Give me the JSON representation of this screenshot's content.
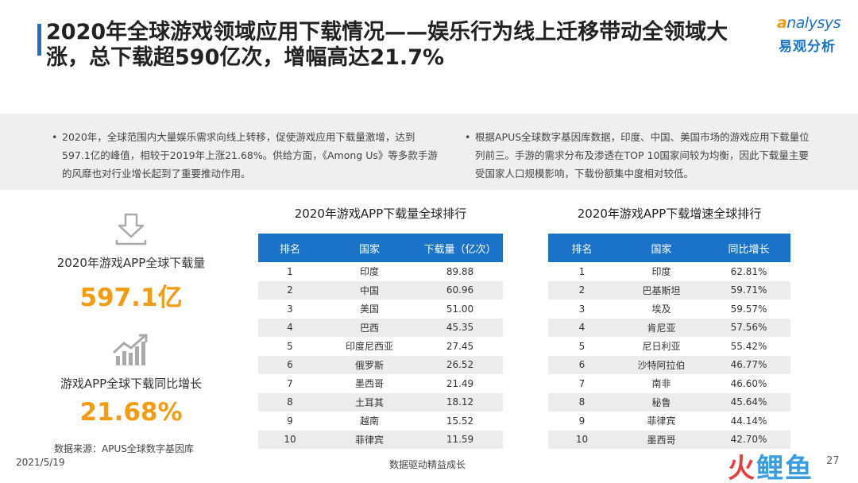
{
  "title": "2020年全球游戏领域应用下载情况——娱乐行为线上迁移带动全领域大涨，总下载超590亿次，增幅高达21.7%",
  "logo": {
    "en_prefix": "a",
    "en_rest": "nalysys",
    "cn": "易观分析"
  },
  "summary": {
    "left": "2020年，全球范围内大量娱乐需求向线上转移，促使游戏应用下载量激增，达到597.1亿的峰值，相较于2019年上涨21.68%。供给方面，《Among Us》等多款手游的风靡也对行业增长起到了重要推动作用。",
    "right": "根据APUS全球数字基因库数据，印度、中国、美国市场的游戏应用下载量位列前三。手游的需求分布及渗透在TOP 10国家间较为均衡，因此下载量主要受国家人口规模影响，下载份额集中度相对较低。"
  },
  "kpis": {
    "downloads": {
      "label": "2020年游戏APP全球下载量",
      "value": "597.1亿",
      "icon": "download-arrow-icon"
    },
    "growth": {
      "label": "游戏APP全球下载同比增长",
      "value": "21.68%",
      "icon": "growth-chart-icon"
    }
  },
  "tables": {
    "downloads": {
      "title": "2020年游戏APP下载量全球排行",
      "headers": [
        "排名",
        "国家",
        "下载量（亿次）"
      ],
      "rows": [
        [
          "1",
          "印度",
          "89.88"
        ],
        [
          "2",
          "中国",
          "60.96"
        ],
        [
          "3",
          "美国",
          "51.00"
        ],
        [
          "4",
          "巴西",
          "45.35"
        ],
        [
          "5",
          "印度尼西亚",
          "27.45"
        ],
        [
          "6",
          "俄罗斯",
          "26.52"
        ],
        [
          "7",
          "墨西哥",
          "21.49"
        ],
        [
          "8",
          "土耳其",
          "18.12"
        ],
        [
          "9",
          "越南",
          "15.52"
        ],
        [
          "10",
          "菲律宾",
          "11.59"
        ]
      ]
    },
    "growth": {
      "title": "2020年游戏APP下载增速全球排行",
      "headers": [
        "排名",
        "国家",
        "同比增长"
      ],
      "rows": [
        [
          "1",
          "印度",
          "62.81%"
        ],
        [
          "2",
          "巴基斯坦",
          "59.71%"
        ],
        [
          "3",
          "埃及",
          "59.57%"
        ],
        [
          "4",
          "肯尼亚",
          "57.56%"
        ],
        [
          "5",
          "尼日利亚",
          "55.42%"
        ],
        [
          "6",
          "沙特阿拉伯",
          "46.77%"
        ],
        [
          "7",
          "南非",
          "46.60%"
        ],
        [
          "8",
          "秘鲁",
          "45.64%"
        ],
        [
          "9",
          "菲律宾",
          "44.14%"
        ],
        [
          "10",
          "墨西哥",
          "42.70%"
        ]
      ]
    }
  },
  "footer": {
    "source": "数据来源：APUS全球数字基因库",
    "date": "2021/5/19",
    "slogan": "数据驱动精益成长",
    "page": "27",
    "brand_a": "火",
    "brand_b": "鲤鱼"
  },
  "colors": {
    "accent": "#1a73c9",
    "highlight": "#f39c12"
  }
}
